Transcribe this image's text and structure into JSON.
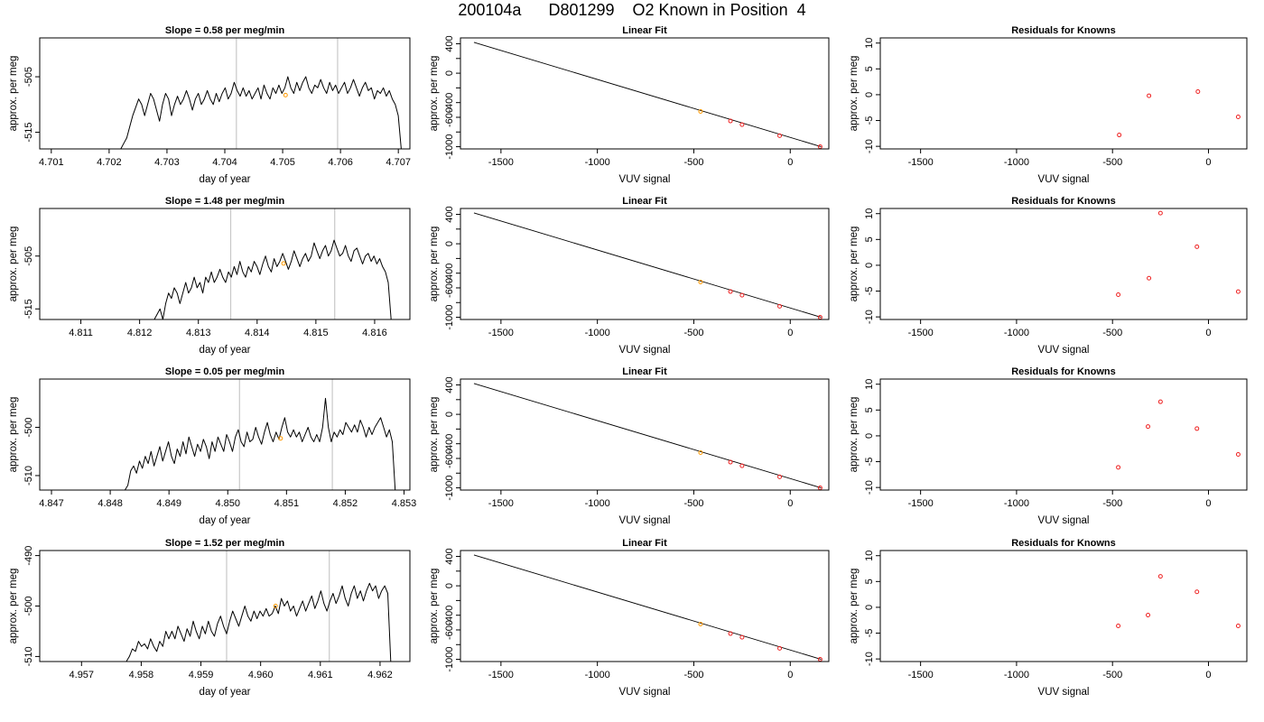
{
  "page": {
    "title": "200104a      D801299    O2 Known in Position  4"
  },
  "colors": {
    "trace": "#000000",
    "marker_known": "#ff9900",
    "marker_residual": "#ee2222",
    "fit_line": "#000000",
    "divider": "#c8c8c8"
  },
  "chart_data": [
    {
      "type": "line",
      "row": 0,
      "col": 0,
      "title": "Slope =  0.58  per meg/min",
      "xlabel": "day of year",
      "ylabel": "approx. per meg",
      "xlim": [
        4.7008,
        4.7072
      ],
      "ylim": [
        -518,
        -498
      ],
      "xticks": [
        4.701,
        4.702,
        4.703,
        4.704,
        4.705,
        4.706,
        4.707
      ],
      "xtick_labels": [
        "4.701",
        "4.702",
        "4.703",
        "4.704",
        "4.705",
        "4.706",
        "4.707"
      ],
      "yticks": [
        -515,
        -505
      ],
      "ytick_labels": [
        "-515",
        "-505"
      ],
      "vlines": [
        4.7042,
        4.70595
      ],
      "trace": {
        "x_start": 4.70215,
        "x_end": 4.70705,
        "values": [
          -518,
          -518,
          -517,
          -516,
          -514,
          -512,
          -510.5,
          -509,
          -510,
          -512,
          -510,
          -508,
          -509,
          -511,
          -513,
          -510,
          -508,
          -509,
          -512,
          -510,
          -508.5,
          -510,
          -509,
          -507.5,
          -509,
          -511,
          -509,
          -508,
          -510,
          -509,
          -507.5,
          -509,
          -510,
          -508,
          -509.5,
          -508,
          -507,
          -509,
          -508,
          -506,
          -507.5,
          -508.5,
          -507,
          -508.5,
          -507.5,
          -509,
          -508,
          -507,
          -509,
          -506.5,
          -508,
          -509,
          -507,
          -508,
          -506.5,
          -508,
          -507,
          -505,
          -507,
          -508,
          -506,
          -507.5,
          -506,
          -505,
          -507,
          -508,
          -506.5,
          -507,
          -505.5,
          -507,
          -508,
          -506,
          -507.5,
          -506.5,
          -508,
          -507,
          -506,
          -508,
          -507,
          -505.5,
          -507,
          -508.5,
          -507,
          -506,
          -507.5,
          -507,
          -509,
          -507.5,
          -508,
          -507,
          -508.5,
          -507.5,
          -509,
          -510,
          -512,
          -518
        ]
      },
      "points": [
        {
          "x": 4.70505,
          "y": -508.3,
          "color": "orange"
        }
      ]
    },
    {
      "type": "scatter",
      "row": 0,
      "col": 1,
      "title": "Linear Fit",
      "xlabel": "VUV signal",
      "ylabel": "approx. per meg",
      "xlim": [
        -1710,
        200
      ],
      "ylim": [
        -1030,
        480
      ],
      "xticks": [
        -1500,
        -1000,
        -500,
        0
      ],
      "xtick_labels": [
        "-1500",
        "-1000",
        "-500",
        "0"
      ],
      "yticks": [
        -1000,
        -800,
        -600,
        -400,
        -200,
        0,
        200,
        400
      ],
      "ytick_labels": [
        "-1000",
        "",
        "-600",
        "-400",
        "",
        "0",
        "",
        "400"
      ],
      "line": {
        "x": [
          -1640,
          160
        ],
        "y": [
          420,
          -1000
        ]
      },
      "points": [
        {
          "x": -465,
          "y": -520,
          "color": "orange"
        },
        {
          "x": -310,
          "y": -650,
          "color": "red"
        },
        {
          "x": -250,
          "y": -700,
          "color": "red"
        },
        {
          "x": -55,
          "y": -850,
          "color": "red"
        },
        {
          "x": 155,
          "y": -1000,
          "color": "red"
        }
      ]
    },
    {
      "type": "scatter",
      "row": 0,
      "col": 2,
      "title": "Residuals for Knowns",
      "xlabel": "VUV signal",
      "ylabel": "approx. per meg",
      "xlim": [
        -1710,
        200
      ],
      "ylim": [
        -10.5,
        11
      ],
      "xticks": [
        -1500,
        -1000,
        -500,
        0
      ],
      "xtick_labels": [
        "-1500",
        "-1000",
        "-500",
        "0"
      ],
      "yticks": [
        -10,
        -5,
        0,
        5,
        10
      ],
      "ytick_labels": [
        "-10",
        "-5",
        "0",
        "5",
        "10"
      ],
      "points": [
        {
          "x": -465,
          "y": -7.8,
          "color": "red"
        },
        {
          "x": -310,
          "y": -0.2,
          "color": "red"
        },
        {
          "x": -55,
          "y": 0.6,
          "color": "red"
        },
        {
          "x": 155,
          "y": -4.3,
          "color": "red"
        }
      ]
    },
    {
      "type": "line",
      "row": 1,
      "col": 0,
      "title": "Slope =  1.48  per meg/min",
      "xlabel": "day of year",
      "ylabel": "approx. per meg",
      "xlim": [
        4.8103,
        4.8166
      ],
      "ylim": [
        -517,
        -496
      ],
      "xticks": [
        4.811,
        4.812,
        4.813,
        4.814,
        4.815,
        4.816
      ],
      "xtick_labels": [
        "4.811",
        "4.812",
        "4.813",
        "4.814",
        "4.815",
        "4.816"
      ],
      "yticks": [
        -515,
        -505
      ],
      "ytick_labels": [
        "-515",
        "-505"
      ],
      "vlines": [
        4.81355,
        4.81532
      ],
      "trace": {
        "x_start": 4.81225,
        "x_end": 4.81628,
        "values": [
          -517,
          -516,
          -515,
          -517,
          -514,
          -512,
          -513,
          -511,
          -512,
          -514,
          -512,
          -510,
          -512,
          -511,
          -509,
          -511,
          -510,
          -512,
          -509,
          -510,
          -508,
          -510,
          -509,
          -507.5,
          -509,
          -510,
          -508,
          -509,
          -507,
          -508.5,
          -506,
          -508,
          -509,
          -507,
          -508,
          -506,
          -507,
          -508.5,
          -506.5,
          -505,
          -507,
          -508,
          -505.5,
          -507,
          -506,
          -504.5,
          -506,
          -507.5,
          -506,
          -504,
          -505.5,
          -507,
          -505.5,
          -504.5,
          -506,
          -505,
          -502.5,
          -504,
          -505.5,
          -504,
          -503,
          -505,
          -504,
          -502,
          -503.5,
          -505,
          -504.5,
          -503,
          -505,
          -506,
          -504,
          -503.5,
          -505,
          -506.5,
          -505,
          -504.5,
          -506,
          -505,
          -506.5,
          -505.5,
          -507,
          -508,
          -510,
          -517
        ]
      },
      "points": [
        {
          "x": 4.81445,
          "y": -506.4,
          "color": "orange"
        }
      ]
    },
    {
      "type": "scatter",
      "row": 1,
      "col": 1,
      "title": "Linear Fit",
      "xlabel": "VUV signal",
      "ylabel": "approx. per meg",
      "xlim": [
        -1710,
        200
      ],
      "ylim": [
        -1030,
        480
      ],
      "xticks": [
        -1500,
        -1000,
        -500,
        0
      ],
      "xtick_labels": [
        "-1500",
        "-1000",
        "-500",
        "0"
      ],
      "yticks": [
        -1000,
        -800,
        -600,
        -400,
        -200,
        0,
        200,
        400
      ],
      "ytick_labels": [
        "-1000",
        "",
        "-600",
        "-400",
        "",
        "0",
        "",
        "400"
      ],
      "line": {
        "x": [
          -1640,
          160
        ],
        "y": [
          420,
          -1000
        ]
      },
      "points": [
        {
          "x": -465,
          "y": -520,
          "color": "orange"
        },
        {
          "x": -310,
          "y": -650,
          "color": "red"
        },
        {
          "x": -250,
          "y": -700,
          "color": "red"
        },
        {
          "x": -55,
          "y": -850,
          "color": "red"
        },
        {
          "x": 155,
          "y": -1000,
          "color": "red"
        }
      ]
    },
    {
      "type": "scatter",
      "row": 1,
      "col": 2,
      "title": "Residuals for Knowns",
      "xlabel": "VUV signal",
      "ylabel": "approx. per meg",
      "xlim": [
        -1710,
        200
      ],
      "ylim": [
        -10.5,
        11
      ],
      "xticks": [
        -1500,
        -1000,
        -500,
        0
      ],
      "xtick_labels": [
        "-1500",
        "-1000",
        "-500",
        "0"
      ],
      "yticks": [
        -10,
        -5,
        0,
        5,
        10
      ],
      "ytick_labels": [
        "-10",
        "-5",
        "0",
        "5",
        "10"
      ],
      "points": [
        {
          "x": -470,
          "y": -5.7,
          "color": "red"
        },
        {
          "x": -310,
          "y": -2.5,
          "color": "red"
        },
        {
          "x": -250,
          "y": 10.1,
          "color": "red"
        },
        {
          "x": -60,
          "y": 3.6,
          "color": "red"
        },
        {
          "x": 155,
          "y": -5.1,
          "color": "red"
        }
      ]
    },
    {
      "type": "line",
      "row": 2,
      "col": 0,
      "title": "Slope =  0.05  per meg/min",
      "xlabel": "day of year",
      "ylabel": "approx. per meg",
      "xlim": [
        4.8468,
        4.8531
      ],
      "ylim": [
        -513,
        -490
      ],
      "xticks": [
        4.847,
        4.848,
        4.849,
        4.85,
        4.851,
        4.852,
        4.853
      ],
      "xtick_labels": [
        "4.847",
        "4.848",
        "4.849",
        "4.850",
        "4.851",
        "4.852",
        "4.853"
      ],
      "yticks": [
        -510,
        -500
      ],
      "ytick_labels": [
        "-510",
        "-500"
      ],
      "vlines": [
        4.8502,
        4.85178
      ],
      "trace": {
        "x_start": 4.84825,
        "x_end": 4.85285,
        "values": [
          -513,
          -512,
          -509,
          -508,
          -509.5,
          -507,
          -508.5,
          -506,
          -507.5,
          -505,
          -508,
          -506,
          -504,
          -507,
          -505,
          -503,
          -506,
          -507.5,
          -504.5,
          -506,
          -503,
          -505.5,
          -502,
          -504,
          -506,
          -503.5,
          -505,
          -502.5,
          -504,
          -506.5,
          -503,
          -505,
          -502,
          -503.5,
          -505,
          -501.5,
          -503,
          -505,
          -502,
          -500.5,
          -503,
          -504,
          -501,
          -503,
          -502.5,
          -500,
          -502,
          -503.5,
          -501,
          -499,
          -501.5,
          -503,
          -501,
          -502.5,
          -500,
          -498,
          -501,
          -502,
          -500.5,
          -502,
          -501,
          -503,
          -501.5,
          -500,
          -502,
          -503,
          -501.5,
          -503,
          -500,
          -494,
          -500,
          -503,
          -501,
          -502,
          -500.5,
          -501.5,
          -499,
          -500,
          -501,
          -499.5,
          -501,
          -498.5,
          -500,
          -502,
          -500,
          -501.5,
          -500,
          -499,
          -498,
          -500,
          -502,
          -500.5,
          -503,
          -513
        ]
      },
      "points": [
        {
          "x": 4.8509,
          "y": -502.3,
          "color": "orange"
        }
      ]
    },
    {
      "type": "scatter",
      "row": 2,
      "col": 1,
      "title": "Linear Fit",
      "xlabel": "VUV signal",
      "ylabel": "approx. per meg",
      "xlim": [
        -1710,
        200
      ],
      "ylim": [
        -1030,
        480
      ],
      "xticks": [
        -1500,
        -1000,
        -500,
        0
      ],
      "xtick_labels": [
        "-1500",
        "-1000",
        "-500",
        "0"
      ],
      "yticks": [
        -1000,
        -800,
        -600,
        -400,
        -200,
        0,
        200,
        400
      ],
      "ytick_labels": [
        "-1000",
        "",
        "-600",
        "-400",
        "",
        "0",
        "",
        "400"
      ],
      "line": {
        "x": [
          -1640,
          160
        ],
        "y": [
          420,
          -1000
        ]
      },
      "points": [
        {
          "x": -465,
          "y": -520,
          "color": "orange"
        },
        {
          "x": -310,
          "y": -650,
          "color": "red"
        },
        {
          "x": -250,
          "y": -700,
          "color": "red"
        },
        {
          "x": -55,
          "y": -850,
          "color": "red"
        },
        {
          "x": 155,
          "y": -1000,
          "color": "red"
        }
      ]
    },
    {
      "type": "scatter",
      "row": 2,
      "col": 2,
      "title": "Residuals for Knowns",
      "xlabel": "VUV signal",
      "ylabel": "approx. per meg",
      "xlim": [
        -1710,
        200
      ],
      "ylim": [
        -10.5,
        11
      ],
      "xticks": [
        -1500,
        -1000,
        -500,
        0
      ],
      "xtick_labels": [
        "-1500",
        "-1000",
        "-500",
        "0"
      ],
      "yticks": [
        -10,
        -5,
        0,
        5,
        10
      ],
      "ytick_labels": [
        "-10",
        "-5",
        "0",
        "5",
        "10"
      ],
      "points": [
        {
          "x": -470,
          "y": -6.1,
          "color": "red"
        },
        {
          "x": -315,
          "y": 1.8,
          "color": "red"
        },
        {
          "x": -250,
          "y": 6.6,
          "color": "red"
        },
        {
          "x": -60,
          "y": 1.4,
          "color": "red"
        },
        {
          "x": 155,
          "y": -3.6,
          "color": "red"
        }
      ]
    },
    {
      "type": "line",
      "row": 3,
      "col": 0,
      "title": "Slope =  1.52  per meg/min",
      "xlabel": "day of year",
      "ylabel": "approx. per meg",
      "xlim": [
        4.9563,
        4.9625
      ],
      "ylim": [
        -511,
        -489
      ],
      "xticks": [
        4.957,
        4.958,
        4.959,
        4.96,
        4.961,
        4.962
      ],
      "xtick_labels": [
        "4.957",
        "4.958",
        "4.959",
        "4.960",
        "4.961",
        "4.962"
      ],
      "yticks": [
        -510,
        -500,
        -490
      ],
      "ytick_labels": [
        "-510",
        "-500",
        "-490"
      ],
      "vlines": [
        4.95943,
        4.96115
      ],
      "trace": {
        "x_start": 4.95775,
        "x_end": 4.96218,
        "values": [
          -511,
          -510,
          -508.5,
          -509,
          -507,
          -508,
          -507.5,
          -508.5,
          -506.5,
          -508,
          -509,
          -507,
          -508,
          -505,
          -506.5,
          -505,
          -506.5,
          -504,
          -505.5,
          -507,
          -504.5,
          -506,
          -503,
          -505,
          -506.5,
          -504,
          -505.5,
          -503,
          -505,
          -506,
          -503.5,
          -502,
          -504,
          -505.5,
          -503,
          -501,
          -502.5,
          -504,
          -502,
          -500,
          -502,
          -503,
          -501,
          -502.5,
          -501,
          -502,
          -500.5,
          -502,
          -501.5,
          -500,
          -501.5,
          -498.5,
          -500,
          -499,
          -501,
          -500,
          -502,
          -500.5,
          -499,
          -501,
          -499.5,
          -498,
          -500.5,
          -499,
          -497,
          -499.5,
          -501,
          -499,
          -497.5,
          -499.5,
          -498,
          -496,
          -498.5,
          -500,
          -497.5,
          -496,
          -498.5,
          -497,
          -499,
          -497,
          -495.5,
          -497,
          -496,
          -498.5,
          -497,
          -496,
          -497.5,
          -511
        ]
      },
      "points": [
        {
          "x": 4.96025,
          "y": -500,
          "color": "orange"
        }
      ]
    },
    {
      "type": "scatter",
      "row": 3,
      "col": 1,
      "title": "Linear Fit",
      "xlabel": "VUV signal",
      "ylabel": "approx. per meg",
      "xlim": [
        -1710,
        200
      ],
      "ylim": [
        -1030,
        480
      ],
      "xticks": [
        -1500,
        -1000,
        -500,
        0
      ],
      "xtick_labels": [
        "-1500",
        "-1000",
        "-500",
        "0"
      ],
      "yticks": [
        -1000,
        -800,
        -600,
        -400,
        -200,
        0,
        200,
        400
      ],
      "ytick_labels": [
        "-1000",
        "",
        "-600",
        "-400",
        "",
        "0",
        "",
        "400"
      ],
      "line": {
        "x": [
          -1640,
          160
        ],
        "y": [
          420,
          -1000
        ]
      },
      "points": [
        {
          "x": -465,
          "y": -520,
          "color": "orange"
        },
        {
          "x": -310,
          "y": -650,
          "color": "red"
        },
        {
          "x": -250,
          "y": -700,
          "color": "red"
        },
        {
          "x": -55,
          "y": -850,
          "color": "red"
        },
        {
          "x": 155,
          "y": -1000,
          "color": "red"
        }
      ]
    },
    {
      "type": "scatter",
      "row": 3,
      "col": 2,
      "title": "Residuals for Knowns",
      "xlabel": "VUV signal",
      "ylabel": "approx. per meg",
      "xlim": [
        -1710,
        200
      ],
      "ylim": [
        -10.5,
        11
      ],
      "xticks": [
        -1500,
        -1000,
        -500,
        0
      ],
      "xtick_labels": [
        "-1500",
        "-1000",
        "-500",
        "0"
      ],
      "yticks": [
        -10,
        -5,
        0,
        5,
        10
      ],
      "ytick_labels": [
        "-10",
        "-5",
        "0",
        "5",
        "10"
      ],
      "points": [
        {
          "x": -470,
          "y": -3.6,
          "color": "red"
        },
        {
          "x": -315,
          "y": -1.5,
          "color": "red"
        },
        {
          "x": -250,
          "y": 6.0,
          "color": "red"
        },
        {
          "x": -60,
          "y": 3.0,
          "color": "red"
        },
        {
          "x": 155,
          "y": -3.6,
          "color": "red"
        }
      ]
    }
  ]
}
